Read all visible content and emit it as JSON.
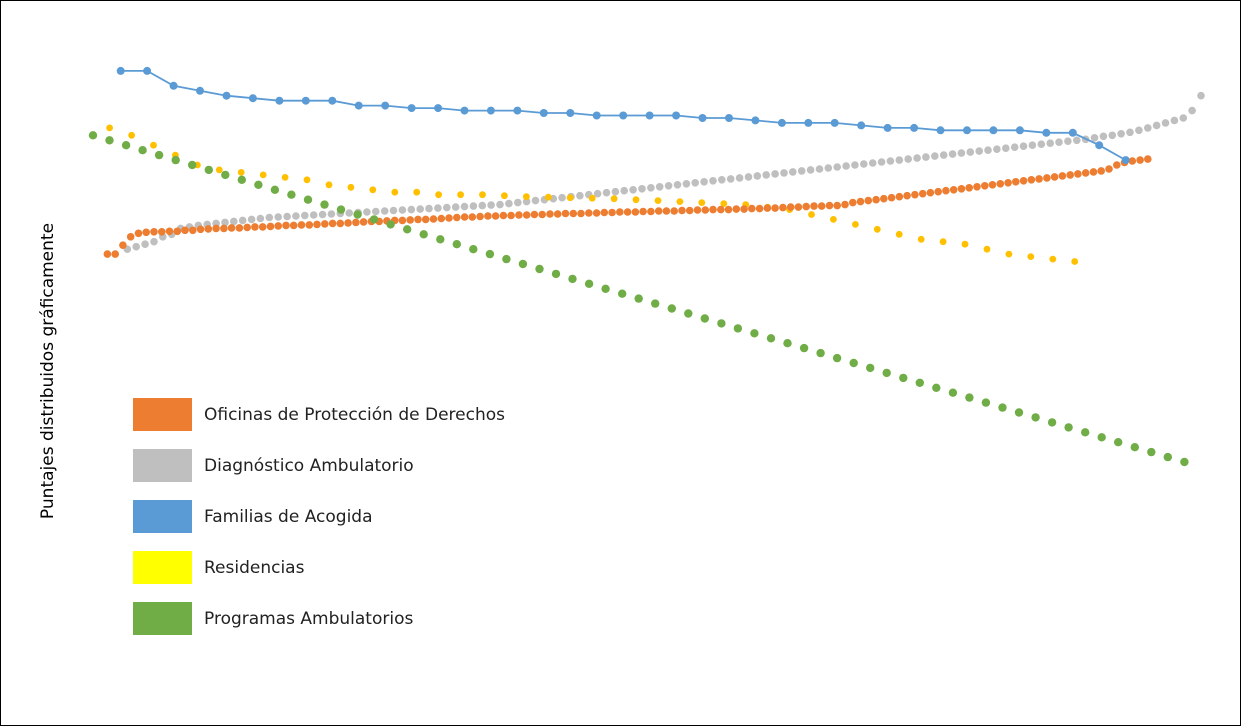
{
  "chart_data": {
    "type": "line",
    "ylabel": "Puntajes distribuidos gráficamente",
    "xlabel": "",
    "title": "",
    "grid": false,
    "legend_position": "left-center",
    "series": [
      {
        "name": "Oficinas de Protección de Derechos",
        "color": "#ED7D31",
        "mode": "markers",
        "values": [
          0.2,
          0.2,
          0.38,
          0.55,
          0.62,
          0.64,
          0.65,
          0.65,
          0.66,
          0.66,
          0.68,
          0.68,
          0.7,
          0.71,
          0.72,
          0.72,
          0.73,
          0.73,
          0.74,
          0.75,
          0.75,
          0.76,
          0.77,
          0.78,
          0.78,
          0.79,
          0.79,
          0.8,
          0.81,
          0.82,
          0.82,
          0.83,
          0.84,
          0.85,
          0.86,
          0.86,
          0.87,
          0.88,
          0.88,
          0.89,
          0.9,
          0.9,
          0.91,
          0.92,
          0.93,
          0.94,
          0.95,
          0.95,
          0.96,
          0.97,
          0.97,
          0.98,
          0.98,
          0.99,
          0.99,
          1.0,
          1.0,
          1.01,
          1.01,
          1.02,
          1.02,
          1.02,
          1.03,
          1.03,
          1.04,
          1.04,
          1.05,
          1.05,
          1.05,
          1.06,
          1.06,
          1.07,
          1.07,
          1.07,
          1.08,
          1.08,
          1.09,
          1.09,
          1.1,
          1.1,
          1.1,
          1.11,
          1.11,
          1.12,
          1.12,
          1.13,
          1.13,
          1.14,
          1.15,
          1.15,
          1.16,
          1.17,
          1.17,
          1.18,
          1.18,
          1.2,
          1.24,
          1.26,
          1.28,
          1.3,
          1.32,
          1.34,
          1.36,
          1.38,
          1.4,
          1.42,
          1.44,
          1.46,
          1.48,
          1.5,
          1.52,
          1.54,
          1.56,
          1.58,
          1.6,
          1.62,
          1.64,
          1.66,
          1.68,
          1.7,
          1.72,
          1.74,
          1.76,
          1.78,
          1.8,
          1.82,
          1.84,
          1.86,
          1.88,
          1.92,
          2.0,
          2.05,
          2.08,
          2.1,
          2.12
        ]
      },
      {
        "name": "Diagnóstico Ambulatorio",
        "color": "#BFBFBF",
        "mode": "markers",
        "values": [
          0.3,
          0.35,
          0.4,
          0.45,
          0.55,
          0.6,
          0.72,
          0.75,
          0.78,
          0.8,
          0.82,
          0.84,
          0.86,
          0.88,
          0.9,
          0.92,
          0.94,
          0.95,
          0.96,
          0.97,
          0.98,
          0.99,
          1.0,
          1.01,
          1.02,
          1.03,
          1.04,
          1.05,
          1.06,
          1.07,
          1.08,
          1.09,
          1.1,
          1.11,
          1.12,
          1.13,
          1.14,
          1.15,
          1.16,
          1.17,
          1.18,
          1.19,
          1.2,
          1.22,
          1.24,
          1.26,
          1.28,
          1.3,
          1.32,
          1.34,
          1.36,
          1.38,
          1.4,
          1.42,
          1.44,
          1.46,
          1.48,
          1.5,
          1.52,
          1.54,
          1.56,
          1.58,
          1.6,
          1.62,
          1.64,
          1.66,
          1.68,
          1.7,
          1.72,
          1.74,
          1.76,
          1.78,
          1.8,
          1.82,
          1.84,
          1.86,
          1.88,
          1.9,
          1.92,
          1.94,
          1.96,
          1.98,
          2.0,
          2.02,
          2.04,
          2.06,
          2.08,
          2.1,
          2.12,
          2.14,
          2.16,
          2.18,
          2.2,
          2.22,
          2.24,
          2.26,
          2.28,
          2.3,
          2.32,
          2.34,
          2.36,
          2.38,
          2.4,
          2.42,
          2.44,
          2.46,
          2.48,
          2.5,
          2.52,
          2.55,
          2.58,
          2.6,
          2.63,
          2.66,
          2.7,
          2.75,
          2.8,
          2.85,
          2.9,
          2.95,
          3.1,
          3.4
        ]
      },
      {
        "name": "Familias de Acogida",
        "color": "#5B9BD5",
        "mode": "lines+markers",
        "values": [
          3.9,
          3.9,
          3.6,
          3.5,
          3.4,
          3.35,
          3.3,
          3.3,
          3.3,
          3.2,
          3.2,
          3.15,
          3.15,
          3.1,
          3.1,
          3.1,
          3.05,
          3.05,
          3.0,
          3.0,
          3.0,
          3.0,
          2.95,
          2.95,
          2.9,
          2.85,
          2.85,
          2.85,
          2.8,
          2.75,
          2.75,
          2.7,
          2.7,
          2.7,
          2.7,
          2.65,
          2.65,
          2.4,
          2.1
        ]
      },
      {
        "name": "Residencias",
        "color": "#FFC000",
        "legend_color": "#FFFF00",
        "mode": "markers",
        "values": [
          2.75,
          2.6,
          2.4,
          2.2,
          2.0,
          1.9,
          1.85,
          1.8,
          1.75,
          1.7,
          1.6,
          1.55,
          1.5,
          1.45,
          1.45,
          1.4,
          1.4,
          1.4,
          1.38,
          1.36,
          1.35,
          1.34,
          1.33,
          1.32,
          1.3,
          1.28,
          1.26,
          1.24,
          1.22,
          1.2,
          1.15,
          1.1,
          1.0,
          0.9,
          0.8,
          0.7,
          0.6,
          0.5,
          0.45,
          0.4,
          0.3,
          0.2,
          0.15,
          0.1,
          0.05
        ]
      },
      {
        "name": "Programas Ambulatorios",
        "color": "#70AD47",
        "mode": "markers",
        "values": [
          2.6,
          2.5,
          2.4,
          2.3,
          2.2,
          2.1,
          2.0,
          1.9,
          1.8,
          1.7,
          1.6,
          1.5,
          1.4,
          1.3,
          1.2,
          1.1,
          1.0,
          0.9,
          0.8,
          0.7,
          0.6,
          0.5,
          0.4,
          0.3,
          0.2,
          0.1,
          0.0,
          -0.1,
          -0.2,
          -0.3,
          -0.4,
          -0.5,
          -0.6,
          -0.7,
          -0.8,
          -0.9,
          -1.0,
          -1.1,
          -1.2,
          -1.3,
          -1.4,
          -1.5,
          -1.6,
          -1.7,
          -1.8,
          -1.9,
          -2.0,
          -2.1,
          -2.2,
          -2.3,
          -2.4,
          -2.5,
          -2.6,
          -2.7,
          -2.8,
          -2.9,
          -3.0,
          -3.1,
          -3.2,
          -3.3,
          -3.4,
          -3.5,
          -3.6,
          -3.7,
          -3.8,
          -3.9,
          -4.0
        ]
      }
    ]
  }
}
